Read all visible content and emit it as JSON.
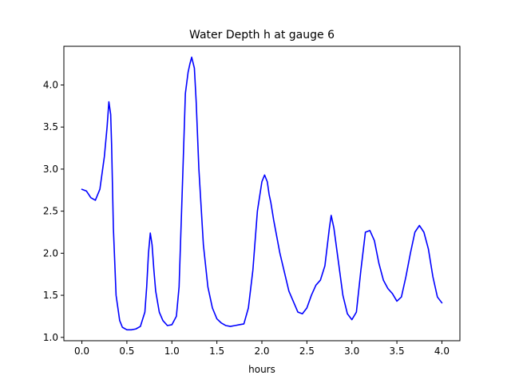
{
  "chart_data": {
    "type": "line",
    "title": "Water Depth h at gauge 6",
    "xlabel": "hours",
    "ylabel": "",
    "xlim": [
      -0.2,
      4.2
    ],
    "ylim": [
      0.96,
      4.46
    ],
    "xticks": [
      0.0,
      0.5,
      1.0,
      1.5,
      2.0,
      2.5,
      3.0,
      3.5,
      4.0
    ],
    "xtick_labels": [
      "0.0",
      "0.5",
      "1.0",
      "1.5",
      "2.0",
      "2.5",
      "3.0",
      "3.5",
      "4.0"
    ],
    "yticks": [
      1.0,
      1.5,
      2.0,
      2.5,
      3.0,
      3.5,
      4.0
    ],
    "ytick_labels": [
      "1.0",
      "1.5",
      "2.0",
      "2.5",
      "3.0",
      "3.5",
      "4.0"
    ],
    "grid": false,
    "series": [
      {
        "color": "#0000ff",
        "x": [
          0.0,
          0.05,
          0.1,
          0.15,
          0.2,
          0.25,
          0.28,
          0.3,
          0.32,
          0.33,
          0.35,
          0.38,
          0.42,
          0.45,
          0.5,
          0.55,
          0.6,
          0.65,
          0.7,
          0.72,
          0.74,
          0.76,
          0.78,
          0.8,
          0.82,
          0.86,
          0.9,
          0.95,
          1.0,
          1.05,
          1.08,
          1.12,
          1.15,
          1.18,
          1.2,
          1.22,
          1.25,
          1.27,
          1.3,
          1.35,
          1.4,
          1.45,
          1.5,
          1.55,
          1.6,
          1.65,
          1.7,
          1.75,
          1.8,
          1.85,
          1.9,
          1.95,
          2.0,
          2.03,
          2.06,
          2.08,
          2.1,
          2.13,
          2.2,
          2.3,
          2.4,
          2.45,
          2.5,
          2.55,
          2.6,
          2.65,
          2.7,
          2.75,
          2.77,
          2.8,
          2.85,
          2.9,
          2.95,
          3.0,
          3.05,
          3.1,
          3.15,
          3.2,
          3.25,
          3.3,
          3.35,
          3.4,
          3.45,
          3.5,
          3.55,
          3.6,
          3.65,
          3.7,
          3.75,
          3.8,
          3.85,
          3.9,
          3.95,
          4.0
        ],
        "y": [
          2.76,
          2.74,
          2.66,
          2.63,
          2.76,
          3.15,
          3.5,
          3.8,
          3.65,
          3.3,
          2.3,
          1.5,
          1.2,
          1.12,
          1.09,
          1.09,
          1.1,
          1.13,
          1.3,
          1.6,
          2.0,
          2.24,
          2.1,
          1.8,
          1.55,
          1.3,
          1.2,
          1.14,
          1.15,
          1.25,
          1.6,
          2.9,
          3.9,
          4.15,
          4.25,
          4.33,
          4.2,
          3.8,
          3.0,
          2.1,
          1.6,
          1.35,
          1.22,
          1.17,
          1.14,
          1.13,
          1.14,
          1.15,
          1.16,
          1.35,
          1.8,
          2.5,
          2.85,
          2.93,
          2.85,
          2.7,
          2.6,
          2.4,
          2.0,
          1.55,
          1.3,
          1.28,
          1.35,
          1.5,
          1.62,
          1.68,
          1.85,
          2.3,
          2.45,
          2.3,
          1.9,
          1.5,
          1.28,
          1.21,
          1.3,
          1.8,
          2.25,
          2.27,
          2.15,
          1.88,
          1.68,
          1.58,
          1.52,
          1.43,
          1.48,
          1.72,
          2.0,
          2.25,
          2.33,
          2.25,
          2.05,
          1.72,
          1.48,
          1.41
        ]
      }
    ]
  }
}
